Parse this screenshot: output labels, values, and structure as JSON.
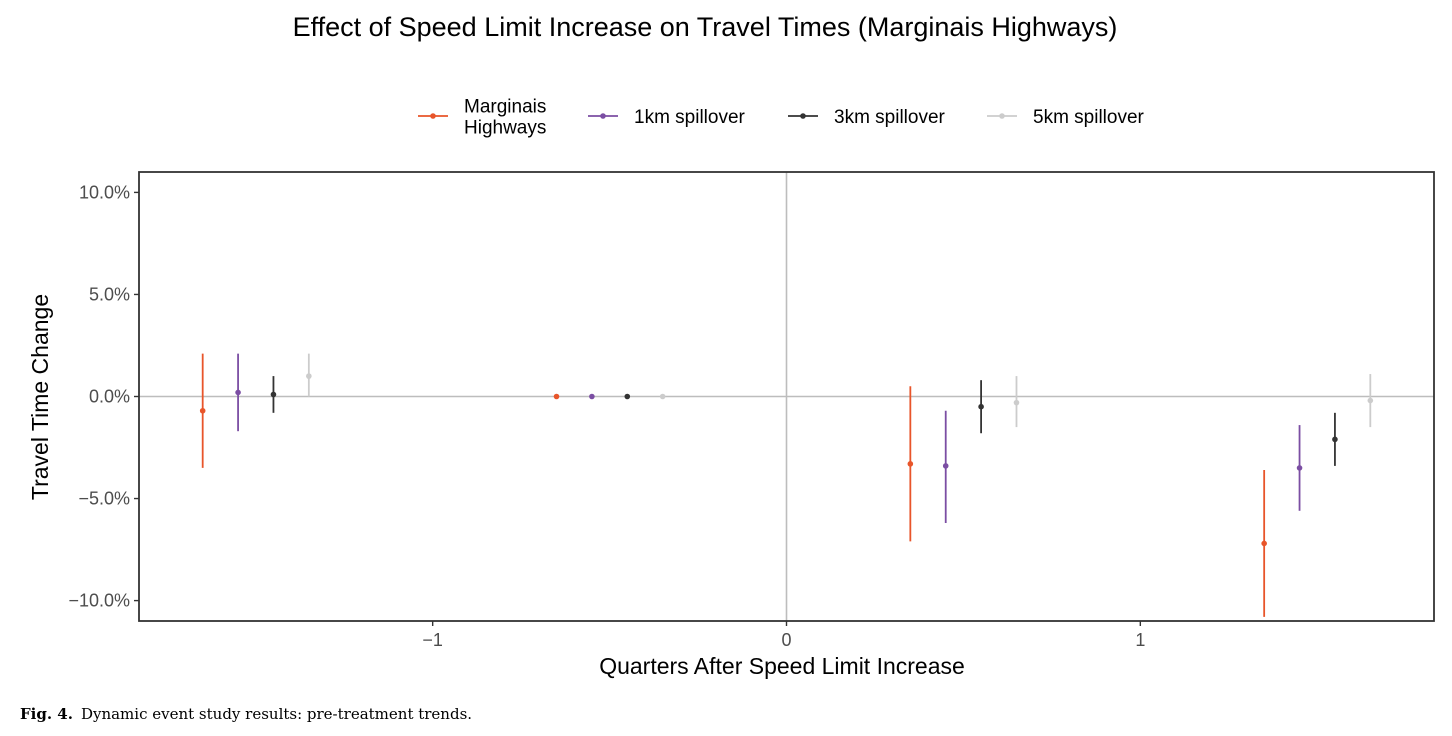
{
  "caption": {
    "label": "Fig. 4.",
    "text": "Dynamic event study results: pre-treatment trends."
  },
  "chart_data": {
    "type": "scatter",
    "subtype": "point-range (estimate with confidence interval)",
    "title": "Effect of Speed Limit Increase on Travel Times (Marginais Highways)",
    "xlabel": "Quarters After Speed Limit Increase",
    "ylabel": "Travel Time Change",
    "xlim": [
      -1.83,
      1.83
    ],
    "ylim": [
      -0.11,
      0.11
    ],
    "x_ticks": [
      -1,
      0,
      1
    ],
    "x_tick_labels": [
      "−1",
      "0",
      "1"
    ],
    "y_ticks": [
      0.1,
      0.05,
      0.0,
      -0.05,
      -0.1
    ],
    "y_tick_labels": [
      "10.0%",
      "5.0%",
      "0.0%",
      "−5.0%",
      "−10.0%"
    ],
    "reference_lines": {
      "vertical_x": 0,
      "horizontal_y": 0
    },
    "grid": false,
    "legend_position": "top",
    "series": [
      {
        "name": "Marginais\nHighways",
        "color": "#e8552a",
        "points": [
          {
            "x": -1.65,
            "y": -0.007,
            "lo": -0.035,
            "hi": 0.021
          },
          {
            "x": -0.65,
            "y": 0.0,
            "lo": 0.0,
            "hi": 0.0
          },
          {
            "x": 0.35,
            "y": -0.033,
            "lo": -0.071,
            "hi": 0.005
          },
          {
            "x": 1.35,
            "y": -0.072,
            "lo": -0.108,
            "hi": -0.036
          }
        ]
      },
      {
        "name": "1km spillover",
        "color": "#7b4ea3",
        "points": [
          {
            "x": -1.55,
            "y": 0.002,
            "lo": -0.017,
            "hi": 0.021
          },
          {
            "x": -0.55,
            "y": 0.0,
            "lo": 0.0,
            "hi": 0.0
          },
          {
            "x": 0.45,
            "y": -0.034,
            "lo": -0.062,
            "hi": -0.007
          },
          {
            "x": 1.45,
            "y": -0.035,
            "lo": -0.056,
            "hi": -0.014
          }
        ]
      },
      {
        "name": "3km spillover",
        "color": "#333333",
        "points": [
          {
            "x": -1.45,
            "y": 0.001,
            "lo": -0.008,
            "hi": 0.01
          },
          {
            "x": -0.45,
            "y": 0.0,
            "lo": 0.0,
            "hi": 0.0
          },
          {
            "x": 0.55,
            "y": -0.005,
            "lo": -0.018,
            "hi": 0.008
          },
          {
            "x": 1.55,
            "y": -0.021,
            "lo": -0.034,
            "hi": -0.008
          }
        ]
      },
      {
        "name": "5km spillover",
        "color": "#cccccc",
        "points": [
          {
            "x": -1.35,
            "y": 0.01,
            "lo": 0.0,
            "hi": 0.021
          },
          {
            "x": -0.35,
            "y": 0.0,
            "lo": 0.0,
            "hi": 0.0
          },
          {
            "x": 0.65,
            "y": -0.003,
            "lo": -0.015,
            "hi": 0.01
          },
          {
            "x": 1.65,
            "y": -0.002,
            "lo": -0.015,
            "hi": 0.011
          }
        ]
      }
    ]
  }
}
